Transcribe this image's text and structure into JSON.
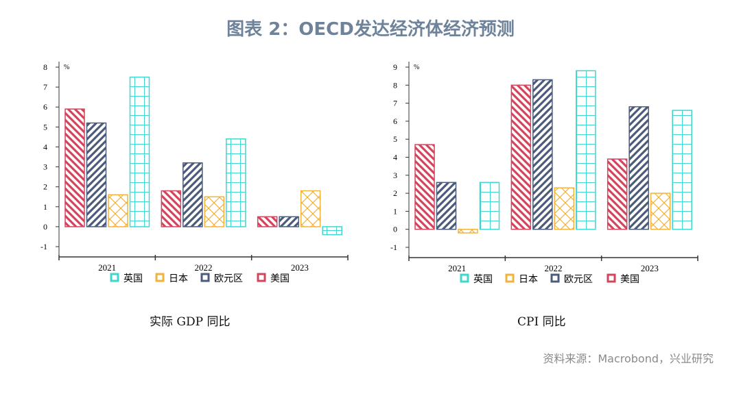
{
  "title": "图表 2：OECD发达经济体经济预测",
  "source": "资料来源：Macrobond，兴业研究",
  "series_colors": {
    "英国": "#3fd6cf",
    "日本": "#f2b33d",
    "欧元区": "#4b5b7c",
    "美国": "#d2455d"
  },
  "chart_data": [
    {
      "type": "bar",
      "title": "实际 GDP 同比",
      "ylabel": "%",
      "categories": [
        "2021",
        "2022",
        "2023"
      ],
      "ylim": [
        -1,
        8
      ],
      "yticks": [
        -1,
        0,
        1,
        2,
        3,
        4,
        5,
        6,
        7,
        8
      ],
      "legend": "bottom",
      "legend_order": [
        "英国",
        "日本",
        "欧元区",
        "美国"
      ],
      "series": [
        {
          "name": "美国",
          "values": [
            5.9,
            1.8,
            0.5
          ]
        },
        {
          "name": "欧元区",
          "values": [
            5.2,
            3.2,
            0.5
          ]
        },
        {
          "name": "日本",
          "values": [
            1.6,
            1.5,
            1.8
          ]
        },
        {
          "name": "英国",
          "values": [
            7.5,
            4.4,
            -0.4
          ]
        }
      ]
    },
    {
      "type": "bar",
      "title": "CPI 同比",
      "ylabel": "%",
      "categories": [
        "2021",
        "2022",
        "2023"
      ],
      "ylim": [
        -1,
        9
      ],
      "yticks": [
        -1,
        0,
        1,
        2,
        3,
        4,
        5,
        6,
        7,
        8,
        9
      ],
      "legend": "bottom",
      "legend_order": [
        "英国",
        "日本",
        "欧元区",
        "美国"
      ],
      "series": [
        {
          "name": "美国",
          "values": [
            4.7,
            8.0,
            3.9
          ]
        },
        {
          "name": "欧元区",
          "values": [
            2.6,
            8.3,
            6.8
          ]
        },
        {
          "name": "日本",
          "values": [
            -0.2,
            2.3,
            2.0
          ]
        },
        {
          "name": "英国",
          "values": [
            2.6,
            8.8,
            6.6
          ]
        }
      ]
    }
  ]
}
